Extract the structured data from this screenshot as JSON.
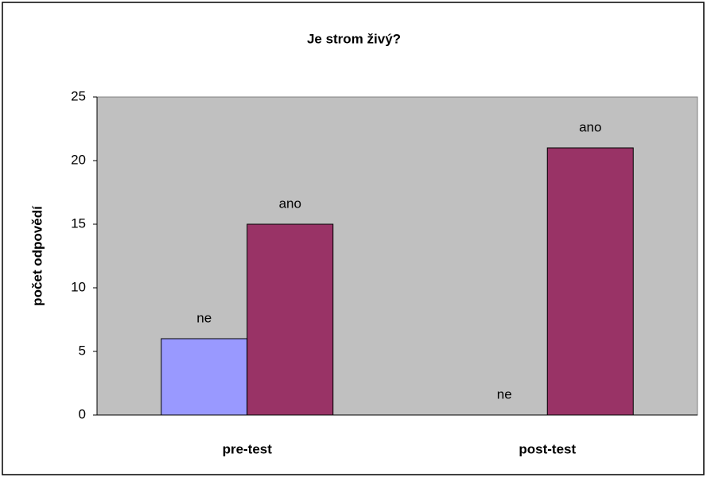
{
  "chart_data": {
    "type": "bar",
    "title": "Je strom živý?",
    "y_label": "počet odpovědí",
    "categories": [
      "pre-test",
      "post-test"
    ],
    "series": [
      {
        "name": "ne",
        "color": "#9999ff",
        "values": [
          6,
          0
        ]
      },
      {
        "name": "ano",
        "color": "#993366",
        "values": [
          15,
          21
        ]
      }
    ],
    "ylim": [
      0,
      25
    ],
    "yticks": [
      0,
      5,
      10,
      15,
      20,
      25
    ],
    "plot_background": "#c0c0c0"
  }
}
